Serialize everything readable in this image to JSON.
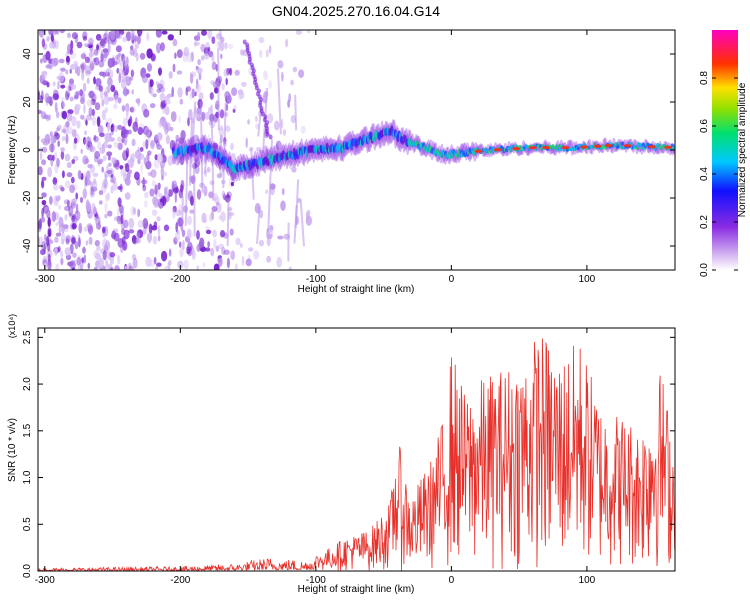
{
  "title": "GN04.2025.270.16.04.G14",
  "chart_data": [
    {
      "type": "heatmap",
      "xlabel": "Height of straight line (km)",
      "ylabel": "Frequency (Hz)",
      "xlim": [
        -305,
        165
      ],
      "ylim": [
        -50,
        50
      ],
      "xticks": [
        -300,
        -200,
        -100,
        0,
        100
      ],
      "yticks": [
        -40,
        -20,
        0,
        20,
        40
      ],
      "colorbar": {
        "label": "Normalized spectral amplitude",
        "range": [
          0.0,
          1.0
        ],
        "ticks": [
          "0.0",
          "0.2",
          "0.4",
          "0.6",
          "0.8"
        ],
        "colormap": "rainbow (white-purple-blue-cyan-green-yellow-red-magenta)"
      },
      "ridge": [
        {
          "x": -205,
          "y": -1
        },
        {
          "x": -180,
          "y": 1
        },
        {
          "x": -160,
          "y": -8
        },
        {
          "x": -140,
          "y": -5
        },
        {
          "x": -120,
          "y": -2
        },
        {
          "x": -100,
          "y": 0
        },
        {
          "x": -80,
          "y": 1
        },
        {
          "x": -60,
          "y": 5
        },
        {
          "x": -45,
          "y": 8
        },
        {
          "x": -35,
          "y": 4
        },
        {
          "x": -20,
          "y": 1
        },
        {
          "x": -5,
          "y": -2
        },
        {
          "x": 10,
          "y": -1
        },
        {
          "x": 30,
          "y": 0
        },
        {
          "x": 60,
          "y": 1
        },
        {
          "x": 90,
          "y": 1
        },
        {
          "x": 120,
          "y": 2
        },
        {
          "x": 165,
          "y": 1
        }
      ]
    },
    {
      "type": "line",
      "xlabel": "Height of straight line (km)",
      "ylabel": "SNR (10 * v/v)",
      "y_multiplier": "(x10⁴)",
      "xlim": [
        -305,
        165
      ],
      "ylim": [
        0,
        2.6
      ],
      "xticks": [
        -300,
        -200,
        -100,
        0,
        100
      ],
      "yticks": [
        0.0,
        0.5,
        1.0,
        1.5,
        2.0,
        2.5
      ],
      "series": [
        {
          "color": "#e8302a",
          "envelope": [
            {
              "x": -305,
              "upper": 0.03
            },
            {
              "x": -200,
              "upper": 0.05
            },
            {
              "x": -160,
              "upper": 0.08
            },
            {
              "x": -135,
              "upper": 0.15
            },
            {
              "x": -110,
              "upper": 0.12
            },
            {
              "x": -95,
              "upper": 0.2
            },
            {
              "x": -80,
              "upper": 0.35
            },
            {
              "x": -60,
              "upper": 0.45
            },
            {
              "x": -45,
              "upper": 0.75
            },
            {
              "x": -40,
              "upper": 1.45
            },
            {
              "x": -30,
              "upper": 0.8
            },
            {
              "x": -15,
              "upper": 1.2
            },
            {
              "x": -5,
              "upper": 1.7
            },
            {
              "x": 0,
              "upper": 2.4
            },
            {
              "x": 10,
              "upper": 1.9
            },
            {
              "x": 25,
              "upper": 2.1
            },
            {
              "x": 40,
              "upper": 2.2
            },
            {
              "x": 55,
              "upper": 2.35
            },
            {
              "x": 65,
              "upper": 2.6
            },
            {
              "x": 80,
              "upper": 2.3
            },
            {
              "x": 95,
              "upper": 2.5
            },
            {
              "x": 110,
              "upper": 1.8
            },
            {
              "x": 125,
              "upper": 1.7
            },
            {
              "x": 140,
              "upper": 1.55
            },
            {
              "x": 155,
              "upper": 2.2
            },
            {
              "x": 165,
              "upper": 1.3
            }
          ]
        }
      ]
    }
  ]
}
